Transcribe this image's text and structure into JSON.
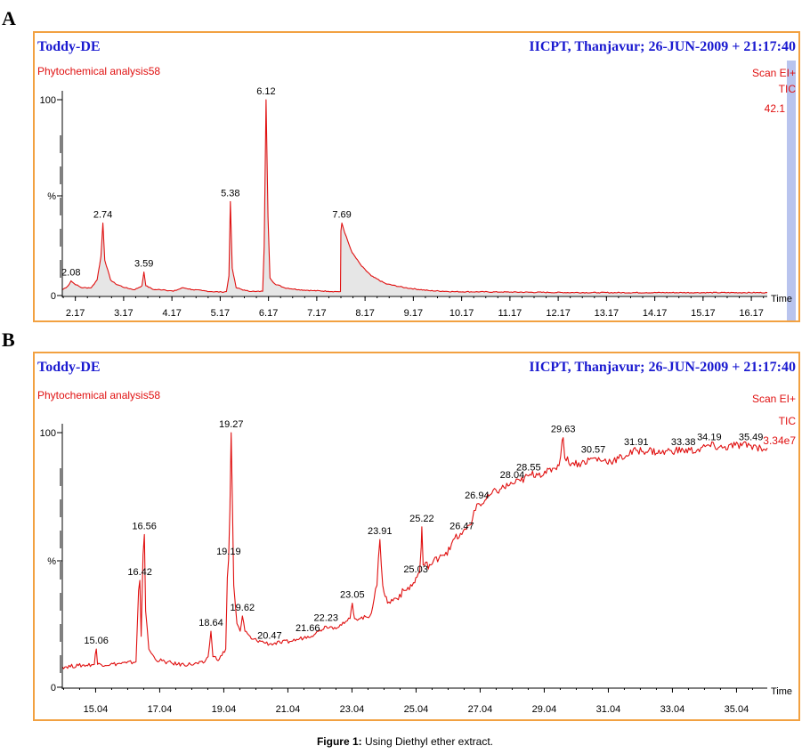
{
  "figure": {
    "caption_label": "Figure 1:",
    "caption_text": " Using Diethyl ether extract."
  },
  "colors": {
    "frame": "#f2a141",
    "trace": "#e01010",
    "header": "#1a1ad0",
    "fill": "#e6e6e6"
  },
  "chart_data": [
    {
      "panel": "A",
      "type": "line",
      "title": "Toddy-DE",
      "instrument": "IICPT, Thanjavur; 26-JUN-2009 + 21:17:40",
      "subtitle": "Phytochemical analysis58",
      "scan": "Scan EI+",
      "tic": "TIC",
      "intensity": "42.1",
      "xlabel": "Time",
      "ylabel": "%",
      "y_ticks": [
        "100",
        "%",
        "0"
      ],
      "xlim": [
        1.9,
        16.5
      ],
      "ylim": [
        0,
        100
      ],
      "x_ticks": [
        2.17,
        3.17,
        4.17,
        5.17,
        6.17,
        7.17,
        8.17,
        9.17,
        10.17,
        11.17,
        12.17,
        13.17,
        14.17,
        15.17,
        16.17
      ],
      "x_tick_labels": [
        "2.17",
        "3.17",
        "4.17",
        "5.17",
        "6.17",
        "7.17",
        "8.17",
        "9.17",
        "10.17",
        "11.17",
        "12.17",
        "13.17",
        "14.17",
        "15.17",
        "16.17"
      ],
      "filled": true,
      "points": [
        [
          1.9,
          3
        ],
        [
          2.0,
          4.5
        ],
        [
          2.05,
          6
        ],
        [
          2.08,
          7.5
        ],
        [
          2.15,
          6
        ],
        [
          2.3,
          4
        ],
        [
          2.5,
          4
        ],
        [
          2.62,
          8
        ],
        [
          2.7,
          20
        ],
        [
          2.74,
          37
        ],
        [
          2.78,
          18
        ],
        [
          2.9,
          8
        ],
        [
          3.0,
          6
        ],
        [
          3.2,
          4
        ],
        [
          3.4,
          3
        ],
        [
          3.55,
          5
        ],
        [
          3.59,
          12
        ],
        [
          3.63,
          5
        ],
        [
          3.8,
          3
        ],
        [
          4.0,
          3
        ],
        [
          4.2,
          2.2
        ],
        [
          4.4,
          4
        ],
        [
          4.6,
          3
        ],
        [
          4.8,
          2.5
        ],
        [
          5.0,
          2
        ],
        [
          5.2,
          1.8
        ],
        [
          5.3,
          2
        ],
        [
          5.35,
          10
        ],
        [
          5.38,
          48
        ],
        [
          5.42,
          14
        ],
        [
          5.5,
          4
        ],
        [
          5.7,
          2.5
        ],
        [
          5.9,
          2
        ],
        [
          6.05,
          2.2
        ],
        [
          6.08,
          25
        ],
        [
          6.12,
          100
        ],
        [
          6.16,
          40
        ],
        [
          6.2,
          9
        ],
        [
          6.3,
          6
        ],
        [
          6.5,
          4
        ],
        [
          6.8,
          3
        ],
        [
          7.1,
          2.5
        ],
        [
          7.4,
          2.2
        ],
        [
          7.6,
          2
        ],
        [
          7.66,
          2
        ],
        [
          7.67,
          33
        ],
        [
          7.69,
          37
        ],
        [
          7.75,
          32
        ],
        [
          7.9,
          22
        ],
        [
          8.1,
          15
        ],
        [
          8.3,
          10
        ],
        [
          8.6,
          6
        ],
        [
          9.0,
          4
        ],
        [
          9.5,
          2.5
        ],
        [
          10.0,
          2
        ],
        [
          11.0,
          1.8
        ],
        [
          12.0,
          1.6
        ],
        [
          13.0,
          1.5
        ],
        [
          14.0,
          1.5
        ],
        [
          15.0,
          1.5
        ],
        [
          16.0,
          1.5
        ],
        [
          16.5,
          1.5
        ]
      ],
      "peaks": [
        {
          "x": 2.08,
          "label": "2.08"
        },
        {
          "x": 2.74,
          "label": "2.74"
        },
        {
          "x": 3.59,
          "label": "3.59"
        },
        {
          "x": 5.38,
          "label": "5.38"
        },
        {
          "x": 6.12,
          "label": "6.12"
        },
        {
          "x": 7.69,
          "label": "7.69"
        }
      ]
    },
    {
      "panel": "B",
      "type": "line",
      "title": "Toddy-DE",
      "instrument": "IICPT, Thanjavur; 26-JUN-2009 + 21:17:40",
      "subtitle": "Phytochemical analysis58",
      "scan": "Scan EI+",
      "tic": "TIC",
      "intensity": "3.34e7",
      "xlabel": "Time",
      "ylabel": "%",
      "y_ticks": [
        "100",
        "%",
        "0"
      ],
      "xlim": [
        14.0,
        36.0
      ],
      "ylim": [
        0,
        100
      ],
      "x_ticks": [
        15.04,
        17.04,
        19.04,
        21.04,
        23.04,
        25.04,
        27.04,
        29.04,
        31.04,
        33.04,
        35.04
      ],
      "x_tick_labels": [
        "15.04",
        "17.04",
        "19.04",
        "21.04",
        "23.04",
        "25.04",
        "27.04",
        "29.04",
        "31.04",
        "33.04",
        "35.04"
      ],
      "filled": false,
      "points": [
        [
          14.0,
          8
        ],
        [
          14.5,
          8.5
        ],
        [
          15.0,
          9
        ],
        [
          15.03,
          13
        ],
        [
          15.06,
          15
        ],
        [
          15.1,
          9
        ],
        [
          15.5,
          9
        ],
        [
          16.0,
          9.5
        ],
        [
          16.3,
          10
        ],
        [
          16.38,
          38
        ],
        [
          16.42,
          42
        ],
        [
          16.46,
          20
        ],
        [
          16.52,
          52
        ],
        [
          16.56,
          60
        ],
        [
          16.6,
          30
        ],
        [
          16.7,
          15
        ],
        [
          16.9,
          11
        ],
        [
          17.2,
          10
        ],
        [
          17.6,
          9
        ],
        [
          18.0,
          9
        ],
        [
          18.4,
          9.5
        ],
        [
          18.55,
          12
        ],
        [
          18.64,
          22
        ],
        [
          18.7,
          12
        ],
        [
          18.9,
          11
        ],
        [
          19.1,
          15
        ],
        [
          19.15,
          43
        ],
        [
          19.19,
          50
        ],
        [
          19.23,
          70
        ],
        [
          19.27,
          100
        ],
        [
          19.31,
          70
        ],
        [
          19.35,
          40
        ],
        [
          19.45,
          25
        ],
        [
          19.55,
          22
        ],
        [
          19.62,
          28
        ],
        [
          19.7,
          22
        ],
        [
          19.9,
          19
        ],
        [
          20.2,
          18
        ],
        [
          20.47,
          17
        ],
        [
          20.8,
          17.5
        ],
        [
          21.1,
          18
        ],
        [
          21.4,
          19
        ],
        [
          21.66,
          20
        ],
        [
          21.9,
          21
        ],
        [
          22.0,
          22
        ],
        [
          22.23,
          24
        ],
        [
          22.5,
          23.5
        ],
        [
          22.8,
          25
        ],
        [
          22.98,
          27
        ],
        [
          23.05,
          33
        ],
        [
          23.12,
          27
        ],
        [
          23.3,
          27
        ],
        [
          23.6,
          28
        ],
        [
          23.82,
          40
        ],
        [
          23.91,
          58
        ],
        [
          24.0,
          40
        ],
        [
          24.15,
          33
        ],
        [
          24.4,
          35
        ],
        [
          24.7,
          38
        ],
        [
          25.0,
          41
        ],
        [
          25.03,
          43
        ],
        [
          25.15,
          45
        ],
        [
          25.2,
          55
        ],
        [
          25.22,
          63
        ],
        [
          25.26,
          48
        ],
        [
          25.5,
          48
        ],
        [
          25.8,
          52
        ],
        [
          26.1,
          54
        ],
        [
          26.2,
          58
        ],
        [
          26.47,
          60
        ],
        [
          26.6,
          62
        ],
        [
          26.8,
          66
        ],
        [
          26.94,
          72
        ],
        [
          27.1,
          72
        ],
        [
          27.4,
          76
        ],
        [
          27.7,
          78
        ],
        [
          28.04,
          80
        ],
        [
          28.3,
          81
        ],
        [
          28.55,
          83
        ],
        [
          28.8,
          84
        ],
        [
          29.1,
          84
        ],
        [
          29.3,
          86
        ],
        [
          29.5,
          87
        ],
        [
          29.6,
          97
        ],
        [
          29.63,
          98
        ],
        [
          29.68,
          90
        ],
        [
          29.9,
          88
        ],
        [
          30.2,
          88
        ],
        [
          30.57,
          90
        ],
        [
          30.9,
          89
        ],
        [
          31.2,
          89
        ],
        [
          31.6,
          91
        ],
        [
          31.91,
          93
        ],
        [
          32.3,
          93
        ],
        [
          32.7,
          92
        ],
        [
          33.0,
          93
        ],
        [
          33.38,
          93
        ],
        [
          33.8,
          93
        ],
        [
          34.19,
          95
        ],
        [
          34.6,
          94
        ],
        [
          35.0,
          95
        ],
        [
          35.49,
          95
        ],
        [
          35.8,
          94
        ],
        [
          36.0,
          94
        ]
      ],
      "peaks": [
        {
          "x": 15.06,
          "label": "15.06"
        },
        {
          "x": 16.42,
          "label": "16.42"
        },
        {
          "x": 16.56,
          "label": "16.56"
        },
        {
          "x": 18.64,
          "label": "18.64"
        },
        {
          "x": 19.19,
          "label": "19.19"
        },
        {
          "x": 19.27,
          "label": "19.27"
        },
        {
          "x": 19.62,
          "label": "19.62"
        },
        {
          "x": 20.47,
          "label": "20.47"
        },
        {
          "x": 21.66,
          "label": "21.66"
        },
        {
          "x": 22.23,
          "label": "22.23"
        },
        {
          "x": 23.05,
          "label": "23.05"
        },
        {
          "x": 23.91,
          "label": "23.91"
        },
        {
          "x": 25.03,
          "label": "25.03"
        },
        {
          "x": 25.22,
          "label": "25.22"
        },
        {
          "x": 26.47,
          "label": "26.47"
        },
        {
          "x": 26.94,
          "label": "26.94"
        },
        {
          "x": 28.04,
          "label": "28.04"
        },
        {
          "x": 28.55,
          "label": "28.55"
        },
        {
          "x": 29.63,
          "label": "29.63"
        },
        {
          "x": 30.57,
          "label": "30.57"
        },
        {
          "x": 31.91,
          "label": "31.91"
        },
        {
          "x": 33.38,
          "label": "33.38"
        },
        {
          "x": 34.19,
          "label": "34.19"
        },
        {
          "x": 35.49,
          "label": "35.49"
        }
      ]
    }
  ]
}
